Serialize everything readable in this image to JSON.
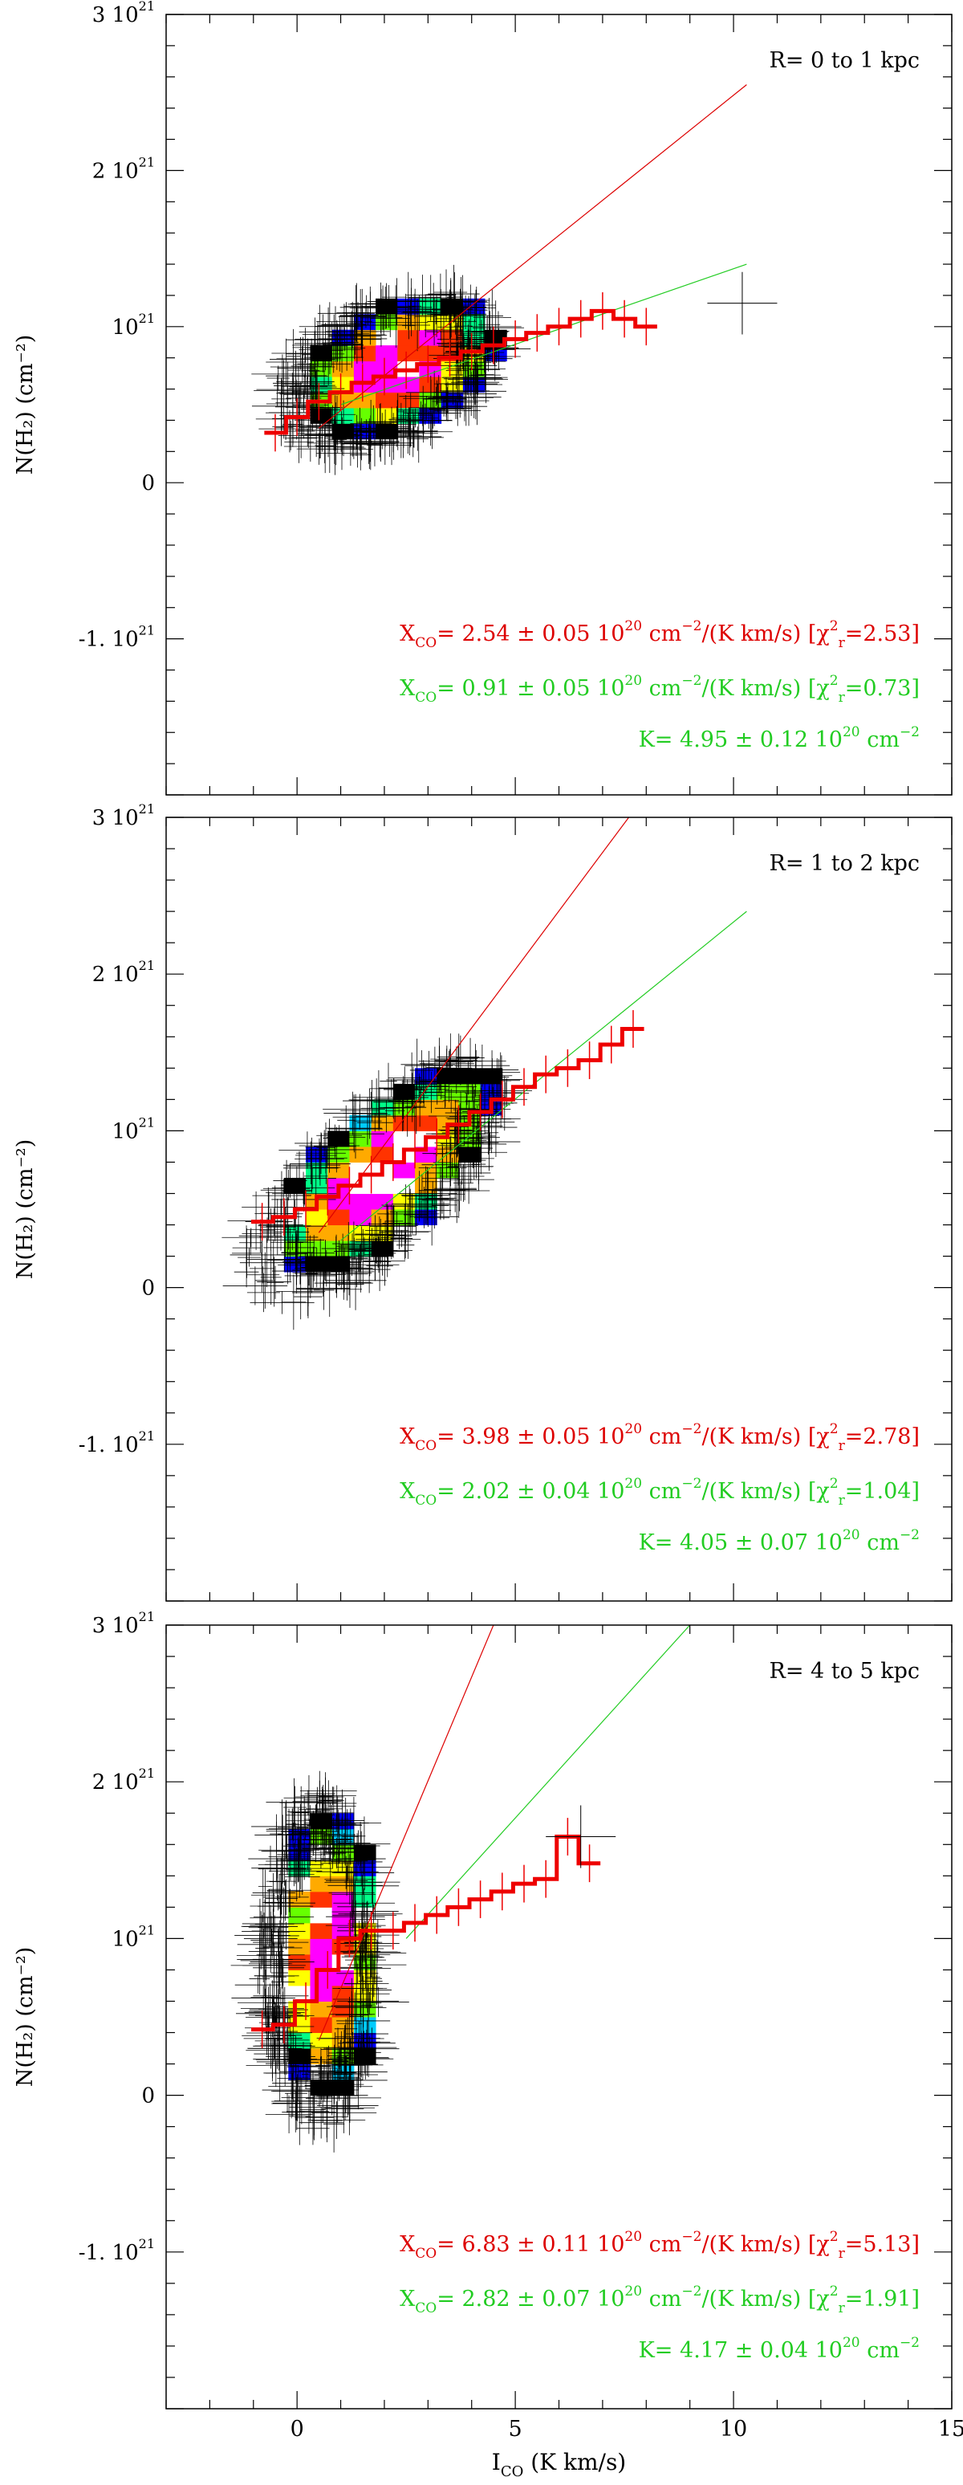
{
  "chart_data": [
    {
      "type": "scatter",
      "title": "R= 0 to 1 kpc",
      "ylabel": "N(H₂) (cm⁻²)",
      "xlim": [
        -3,
        15
      ],
      "ylim": [
        -2e+21,
        3e+21
      ],
      "y_ticks": [
        {
          "value": 3e+21,
          "label": "3 10",
          "exp": "21"
        },
        {
          "value": 2e+21,
          "label": "2 10",
          "exp": "21"
        },
        {
          "value": 1e+21,
          "label": "10",
          "exp": "21"
        },
        {
          "value": 0,
          "label": "0",
          "exp": ""
        },
        {
          "value": -1e+21,
          "label": "-1. 10",
          "exp": "21"
        }
      ],
      "fit_red": {
        "x_end": 10.3,
        "y_end": 2.55e+21
      },
      "fit_green": {
        "x_start": 1.0,
        "y_start": 5e+20,
        "x_end": 10.3,
        "y_end": 1.4e+21
      },
      "binned_x": [
        -0.5,
        0.0,
        0.5,
        1.0,
        1.5,
        2.0,
        2.5,
        3.0,
        3.5,
        4.0,
        4.5,
        5.0,
        5.5,
        6.0,
        6.5,
        7.0,
        7.5,
        8.0
      ],
      "binned_y": [
        0.32,
        0.42,
        0.52,
        0.58,
        0.64,
        0.68,
        0.72,
        0.76,
        0.8,
        0.84,
        0.88,
        0.92,
        0.96,
        1.0,
        1.05,
        1.1,
        1.05,
        1.0
      ],
      "sample_point": {
        "x": 10.2,
        "y": 1.15e+21
      },
      "cloud": {
        "cx": 2.1,
        "cy": 7e+20,
        "rx": 2.3,
        "ry": 4.2e+20,
        "tilt": 7e+19
      },
      "annotations": [
        {
          "color": "#dd0000",
          "prefix": "X",
          "sub": "CO",
          "rest": "= 2.54 ± 0.05 10",
          "sup": "20",
          "unit": " cm",
          "unit_sup": "−2",
          "tail": "/(K km/s) [χ",
          "chi_sup": "2",
          "chi_sub": "r",
          "chi_val": "=2.53]"
        },
        {
          "color": "#22cc22",
          "prefix": "X",
          "sub": "CO",
          "rest": "= 0.91 ± 0.05 10",
          "sup": "20",
          "unit": " cm",
          "unit_sup": "−2",
          "tail": "/(K km/s) [χ",
          "chi_sup": "2",
          "chi_sub": "r",
          "chi_val": "=0.73]"
        },
        {
          "color": "#22cc22",
          "k_text": "K= 4.95 ± 0.12 10",
          "k_sup": "20",
          "k_unit": " cm",
          "k_unit_sup": "−2"
        }
      ]
    },
    {
      "type": "scatter",
      "title": "R= 1 to 2 kpc",
      "ylabel": "N(H₂) (cm⁻²)",
      "xlim": [
        -3,
        15
      ],
      "ylim": [
        -2e+21,
        3e+21
      ],
      "y_ticks": [
        {
          "value": 3e+21,
          "label": "3 10",
          "exp": "21"
        },
        {
          "value": 2e+21,
          "label": "2 10",
          "exp": "21"
        },
        {
          "value": 1e+21,
          "label": "10",
          "exp": "21"
        },
        {
          "value": 0,
          "label": "0",
          "exp": ""
        },
        {
          "value": -1e+21,
          "label": "-1. 10",
          "exp": "21"
        }
      ],
      "fit_red": {
        "x_end": 7.6,
        "y_end": 3e+21
      },
      "fit_green": {
        "x_start": 1.0,
        "y_start": 3e+20,
        "x_end": 10.3,
        "y_end": 2.4e+21
      },
      "binned_x": [
        -0.8,
        -0.3,
        0.2,
        0.7,
        1.2,
        1.7,
        2.2,
        2.7,
        3.2,
        3.7,
        4.2,
        4.7,
        5.2,
        5.7,
        6.2,
        6.7,
        7.2,
        7.7
      ],
      "binned_y": [
        0.42,
        0.45,
        0.5,
        0.58,
        0.65,
        0.72,
        0.8,
        0.88,
        0.96,
        1.04,
        1.12,
        1.2,
        1.28,
        1.36,
        1.4,
        1.45,
        1.55,
        1.65
      ],
      "sample_point": null,
      "cloud": {
        "cx": 1.8,
        "cy": 7e+20,
        "rx": 2.6,
        "ry": 5e+20,
        "tilt": 1.8e+20
      },
      "annotations": [
        {
          "color": "#dd0000",
          "prefix": "X",
          "sub": "CO",
          "rest": "= 3.98 ± 0.05 10",
          "sup": "20",
          "unit": " cm",
          "unit_sup": "−2",
          "tail": "/(K km/s) [χ",
          "chi_sup": "2",
          "chi_sub": "r",
          "chi_val": "=2.78]"
        },
        {
          "color": "#22cc22",
          "prefix": "X",
          "sub": "CO",
          "rest": "= 2.02 ± 0.04 10",
          "sup": "20",
          "unit": " cm",
          "unit_sup": "−2",
          "tail": "/(K km/s) [χ",
          "chi_sup": "2",
          "chi_sub": "r",
          "chi_val": "=1.04]"
        },
        {
          "color": "#22cc22",
          "k_text": "K= 4.05 ± 0.07 10",
          "k_sup": "20",
          "k_unit": " cm",
          "k_unit_sup": "−2"
        }
      ]
    },
    {
      "type": "scatter",
      "title": "R= 4 to 5 kpc",
      "ylabel": "N(H₂) (cm⁻²)",
      "xlabel": "I",
      "xlabel_sub": "CO",
      "xlabel_rest": " (K km/s)",
      "xlim": [
        -3,
        15
      ],
      "ylim": [
        -2e+21,
        3e+21
      ],
      "x_ticks": [
        0,
        5,
        10,
        15
      ],
      "y_ticks": [
        {
          "value": 3e+21,
          "label": "3 10",
          "exp": "21"
        },
        {
          "value": 2e+21,
          "label": "2 10",
          "exp": "21"
        },
        {
          "value": 1e+21,
          "label": "10",
          "exp": "21"
        },
        {
          "value": 0,
          "label": "0",
          "exp": ""
        },
        {
          "value": -1e+21,
          "label": "-1. 10",
          "exp": "21"
        }
      ],
      "fit_red": {
        "x_end": 4.5,
        "y_end": 3e+21
      },
      "fit_green": {
        "x_start": 2.5,
        "y_start": 1e+21,
        "x_end": 9.0,
        "y_end": 3e+21
      },
      "binned_x": [
        -0.8,
        -0.3,
        0.2,
        0.7,
        1.2,
        1.7,
        2.2,
        2.7,
        3.2,
        3.7,
        4.2,
        4.7,
        5.2,
        5.7,
        6.2,
        6.7
      ],
      "binned_y": [
        0.42,
        0.45,
        0.6,
        0.8,
        1.0,
        1.05,
        1.05,
        1.1,
        1.15,
        1.2,
        1.25,
        1.3,
        1.35,
        1.38,
        1.65,
        1.48
      ],
      "sample_point": {
        "x": 6.5,
        "y": 1.65e+21
      },
      "cloud": {
        "cx": 0.5,
        "cy": 8.5e+20,
        "rx": 1.2,
        "ry": 9.5e+20,
        "tilt": 0.0
      },
      "annotations": [
        {
          "color": "#dd0000",
          "prefix": "X",
          "sub": "CO",
          "rest": "= 6.83 ± 0.11 10",
          "sup": "20",
          "unit": " cm",
          "unit_sup": "−2",
          "tail": "/(K km/s) [χ",
          "chi_sup": "2",
          "chi_sub": "r",
          "chi_val": "=5.13]"
        },
        {
          "color": "#22cc22",
          "prefix": "X",
          "sub": "CO",
          "rest": "= 2.82 ± 0.07 10",
          "sup": "20",
          "unit": " cm",
          "unit_sup": "−2",
          "tail": "/(K km/s) [χ",
          "chi_sup": "2",
          "chi_sub": "r",
          "chi_val": "=1.91]"
        },
        {
          "color": "#22cc22",
          "k_text": "K= 4.17 ± 0.04 10",
          "k_sup": "20",
          "k_unit": " cm",
          "k_unit_sup": "−2"
        }
      ]
    }
  ],
  "colors": {
    "axes": "#000000",
    "fit_red": "#dd0000",
    "fit_green": "#22cc22",
    "binned": "#ee0000",
    "cloud_palette": [
      "#000000",
      "#0000ff",
      "#00ccff",
      "#00ff88",
      "#66ff00",
      "#ffff00",
      "#ffaa00",
      "#ff3300",
      "#ff00ff",
      "#ffffff"
    ]
  }
}
